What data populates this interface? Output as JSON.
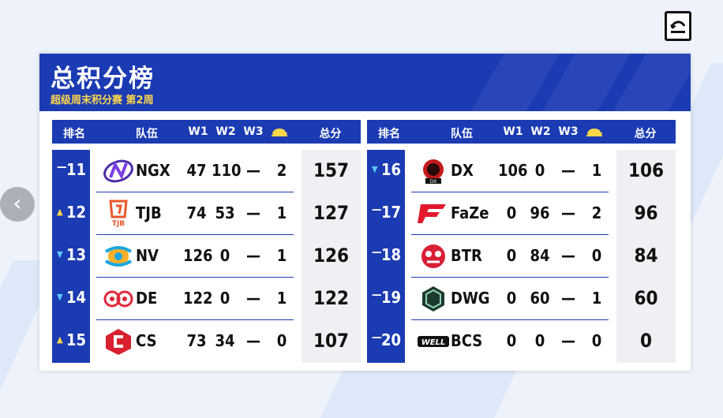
{
  "title": "总积分榜",
  "subtitle": "超级周末积分赛 第2周",
  "columns": {
    "rank": "排名",
    "team": "队伍",
    "w1": "W1",
    "w2": "W2",
    "w3": "W3",
    "chicken_icon": "chicken-dinner-icon",
    "total": "总分"
  },
  "colors": {
    "primary": "#1b3bb3",
    "accent": "#ffd84a",
    "down": "#5ec8ff"
  },
  "left_rows": [
    {
      "move": "same",
      "rank": "11",
      "team": "NGX",
      "w1": "47",
      "w2": "110",
      "w3": "—",
      "chicken": "2",
      "total": "157",
      "logo": "ngx-logo"
    },
    {
      "move": "up",
      "rank": "12",
      "team": "TJB",
      "w1": "74",
      "w2": "53",
      "w3": "—",
      "chicken": "1",
      "total": "127",
      "logo": "tjb-logo"
    },
    {
      "move": "down",
      "rank": "13",
      "team": "NV",
      "w1": "126",
      "w2": "0",
      "w3": "—",
      "chicken": "1",
      "total": "126",
      "logo": "nv-logo"
    },
    {
      "move": "down",
      "rank": "14",
      "team": "DE",
      "w1": "122",
      "w2": "0",
      "w3": "—",
      "chicken": "1",
      "total": "122",
      "logo": "de-logo"
    },
    {
      "move": "up",
      "rank": "15",
      "team": "CS",
      "w1": "73",
      "w2": "34",
      "w3": "—",
      "chicken": "0",
      "total": "107",
      "logo": "cs-logo"
    }
  ],
  "right_rows": [
    {
      "move": "down",
      "rank": "16",
      "team": "DX",
      "w1": "106",
      "w2": "0",
      "w3": "—",
      "chicken": "1",
      "total": "106",
      "logo": "dx-logo"
    },
    {
      "move": "same",
      "rank": "17",
      "team": "FaZe",
      "w1": "0",
      "w2": "96",
      "w3": "—",
      "chicken": "2",
      "total": "96",
      "logo": "faze-logo"
    },
    {
      "move": "same",
      "rank": "18",
      "team": "BTR",
      "w1": "0",
      "w2": "84",
      "w3": "—",
      "chicken": "0",
      "total": "84",
      "logo": "btr-logo"
    },
    {
      "move": "same",
      "rank": "19",
      "team": "DWG",
      "w1": "0",
      "w2": "60",
      "w3": "—",
      "chicken": "1",
      "total": "60",
      "logo": "dwg-logo"
    },
    {
      "move": "same",
      "rank": "20",
      "team": "BCS",
      "w1": "0",
      "w2": "0",
      "w3": "—",
      "chicken": "0",
      "total": "0",
      "logo": "bcs-logo"
    }
  ],
  "logo_texts": {
    "tjb": "TJB",
    "bcs": "WELL"
  }
}
